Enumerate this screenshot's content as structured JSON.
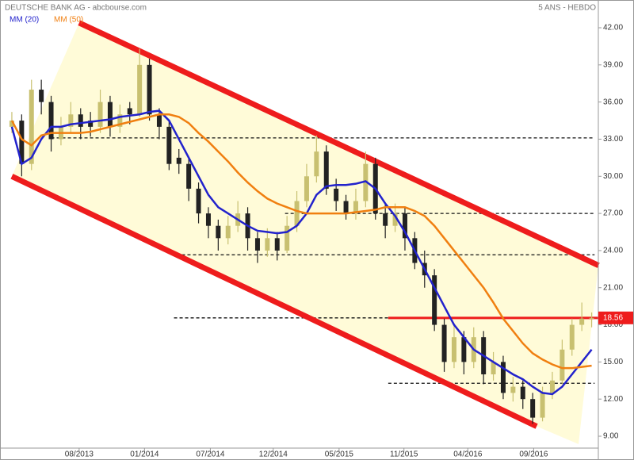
{
  "chart_data": {
    "type": "candlestick",
    "title": "DEUTSCHE BANK AG - abcbourse.com",
    "subtitle": "5 ANS - HEBDO",
    "x": [
      0,
      1,
      2,
      3,
      4,
      5,
      6,
      7,
      8,
      9,
      10,
      11,
      12,
      13,
      14,
      15,
      16,
      17,
      18,
      19,
      20,
      21,
      22,
      23,
      24,
      25,
      26,
      27,
      28,
      29,
      30,
      31,
      32,
      33,
      34,
      35,
      36,
      37,
      38,
      39,
      40,
      41,
      42,
      43,
      44,
      45,
      46,
      47,
      48,
      49,
      50,
      51,
      52,
      53,
      54,
      55,
      56,
      57,
      58,
      59
    ],
    "open": [
      34,
      34.5,
      31,
      37,
      36,
      33,
      34,
      35,
      34.5,
      34,
      36,
      34,
      35.5,
      35,
      39,
      35,
      34,
      31.5,
      31,
      29,
      27,
      26,
      25,
      26,
      27,
      25,
      24,
      25,
      24,
      26,
      28,
      30,
      32,
      29,
      28,
      27,
      28,
      31,
      27,
      26,
      27,
      25,
      23,
      22,
      18,
      15,
      17,
      15,
      17,
      14,
      15,
      12.5,
      13,
      12,
      10.5,
      12.5,
      13.5,
      16,
      18,
      18.5
    ],
    "high": [
      35.2,
      35,
      37.8,
      37.8,
      36.5,
      34.8,
      36,
      35.5,
      35.2,
      37,
      36.5,
      35.8,
      36,
      40.3,
      39.5,
      35.5,
      34.5,
      32.2,
      31.5,
      29.5,
      27.5,
      26.5,
      26.8,
      28,
      27.5,
      25.5,
      25.8,
      25.5,
      26.8,
      28.8,
      31,
      33.3,
      32.5,
      29.8,
      28.5,
      29,
      32,
      31.5,
      27.8,
      27.8,
      27.5,
      25.5,
      24,
      22.5,
      18.5,
      18,
      17.5,
      17.8,
      17.5,
      15.8,
      15.5,
      13.8,
      13.5,
      12.5,
      13,
      14.2,
      16.8,
      18.5,
      19.8,
      19
    ],
    "low": [
      33.5,
      30,
      30.5,
      35,
      32,
      32.5,
      33.5,
      33,
      33.2,
      33.5,
      33.2,
      33.5,
      34.2,
      34.8,
      34.5,
      33,
      30.5,
      30.2,
      28,
      26.2,
      25,
      24,
      24.5,
      25.5,
      24,
      23,
      23.5,
      23.2,
      23.8,
      25.5,
      27.5,
      29.5,
      28.5,
      27.2,
      26.5,
      26.5,
      27.5,
      26.5,
      25,
      25.5,
      24,
      22.5,
      21,
      17.5,
      14.2,
      14.5,
      14,
      14.5,
      13.2,
      13.5,
      12,
      11.8,
      11.2,
      10,
      10.2,
      12,
      13.2,
      15.5,
      17.5,
      17.8
    ],
    "close": [
      34.5,
      31,
      37,
      36,
      33,
      34,
      35,
      34,
      34,
      36,
      34,
      35,
      35,
      39,
      35,
      34,
      31,
      31,
      29,
      27,
      26,
      25,
      26,
      27,
      25,
      24,
      25,
      24,
      26,
      28,
      30,
      32,
      29,
      28,
      27,
      28,
      31,
      27,
      26,
      27,
      25,
      23,
      22,
      18,
      15,
      17,
      15,
      17,
      14,
      15,
      12.5,
      13,
      12,
      10.5,
      12.5,
      13.5,
      16,
      18,
      18.5,
      18.56
    ],
    "up_color": "#c8c070",
    "down_color": "#222222",
    "series": [
      {
        "name": "MM (20)",
        "color": "#2222cc",
        "values": [
          34,
          31,
          31.5,
          33,
          34,
          34,
          34.2,
          34.3,
          34.4,
          34.5,
          34.6,
          34.8,
          34.9,
          35,
          35.2,
          35.3,
          34.5,
          33,
          31.5,
          30,
          28.5,
          27.5,
          27,
          26.5,
          26,
          25.6,
          25.5,
          25.4,
          25.5,
          26,
          27,
          28.5,
          29.2,
          29.3,
          29.3,
          29.4,
          29.6,
          29,
          27.8,
          26.8,
          25.5,
          24,
          22.5,
          21,
          19.5,
          18,
          17,
          16,
          15.5,
          15,
          14.5,
          14,
          13.6,
          13,
          12.5,
          12.4,
          13,
          14,
          15,
          16
        ]
      },
      {
        "name": "MM (50)",
        "color": "#f07f10",
        "values": [
          34.5,
          33,
          32.5,
          33.3,
          33.5,
          33.5,
          33.5,
          33.5,
          33.6,
          33.8,
          34,
          34.2,
          34.4,
          34.6,
          34.8,
          35,
          35,
          34.8,
          34.3,
          33.5,
          32.8,
          32,
          31.2,
          30.3,
          29.5,
          28.8,
          28.2,
          27.8,
          27.5,
          27.2,
          27,
          27,
          27,
          27,
          27,
          27.1,
          27.2,
          27.3,
          27.5,
          27.5,
          27.5,
          27.2,
          26.8,
          26,
          25,
          24,
          23,
          22,
          21,
          19.8,
          18.5,
          17.5,
          16.5,
          15.7,
          15.2,
          14.8,
          14.5,
          14.5,
          14.6,
          14.7
        ]
      }
    ],
    "trendlines": [
      {
        "x": [
          6.85,
          59.7
        ],
        "values": [
          42.4,
          22.8
        ],
        "color": "#ee1c1c"
      },
      {
        "x": [
          0,
          53.4
        ],
        "values": [
          30,
          9.8
        ],
        "color": "#ee1c1c"
      }
    ],
    "levels": [
      {
        "value": 33.1,
        "x": [
          4.0,
          59.3
        ]
      },
      {
        "value": 27,
        "x": [
          27.8,
          59.3
        ]
      },
      {
        "value": 23.66,
        "x": [
          17.3,
          59.3
        ]
      },
      {
        "value": 18.56,
        "x": [
          16.5,
          38.3
        ]
      },
      {
        "value": 13.28,
        "x": [
          38.3,
          59.3
        ]
      }
    ],
    "resistance": {
      "value": 18.56,
      "x": [
        38.3,
        59.7
      ],
      "color": "#ee1c1c"
    },
    "last_price": 18.56,
    "xlim": [
      -0.56,
      59.68
    ],
    "ylim": [
      8.04,
      43.09
    ],
    "yticks": [
      {
        "value": 42,
        "label": "42.00"
      },
      {
        "value": 39,
        "label": "39.00"
      },
      {
        "value": 36,
        "label": "36.00"
      },
      {
        "value": 33,
        "label": "33.00"
      },
      {
        "value": 30,
        "label": "30.00"
      },
      {
        "value": 27,
        "label": "27.00"
      },
      {
        "value": 24,
        "label": "24.00"
      },
      {
        "value": 21,
        "label": "21.00"
      },
      {
        "value": 18,
        "label": "18.00"
      },
      {
        "value": 15,
        "label": "15.00"
      },
      {
        "value": 12,
        "label": "12.00"
      },
      {
        "value": 9,
        "label": "9.00"
      }
    ],
    "xticks": [
      {
        "value": 6.85,
        "label": "08/2013"
      },
      {
        "value": 13.5,
        "label": "01/2014"
      },
      {
        "value": 20.2,
        "label": "07/2014"
      },
      {
        "value": 26.6,
        "label": "12/2014"
      },
      {
        "value": 33.3,
        "label": "05/2015"
      },
      {
        "value": 39.9,
        "label": "11/2015"
      },
      {
        "value": 46.4,
        "label": "04/2016"
      },
      {
        "value": 53.1,
        "label": "09/2016"
      }
    ]
  }
}
